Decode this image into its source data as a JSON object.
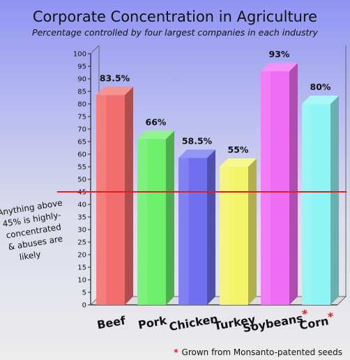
{
  "chart_data": {
    "type": "bar",
    "title": "Corporate Concentration in Agriculture",
    "subtitle": "Percentage controlled by four largest companies in each industry",
    "categories": [
      "Beef",
      "Pork",
      "Chicken",
      "Turkey",
      "Soybeans",
      "Corn"
    ],
    "values": [
      83.5,
      66,
      58.5,
      55,
      93,
      80
    ],
    "value_labels": [
      "83.5%",
      "66%",
      "58.5%",
      "55%",
      "93%",
      "80%"
    ],
    "asterisk_categories": [
      "Soybeans",
      "Corn"
    ],
    "asterisk_symbol": "*",
    "ylim": [
      0,
      100
    ],
    "ytick_step": 5,
    "colors": [
      "#f26d6d",
      "#6cf06c",
      "#7070f0",
      "#f4f46a",
      "#f06cf4",
      "#8ff4f4"
    ],
    "threshold": {
      "value": 45,
      "color": "#e21d1d",
      "annotation_lines": [
        "Anything above",
        "45% is highly-",
        "concentrated",
        "& abuses are",
        "likely"
      ]
    },
    "footnote": {
      "symbol": "*",
      "text": "Grown from Monsanto-patented seeds"
    }
  }
}
